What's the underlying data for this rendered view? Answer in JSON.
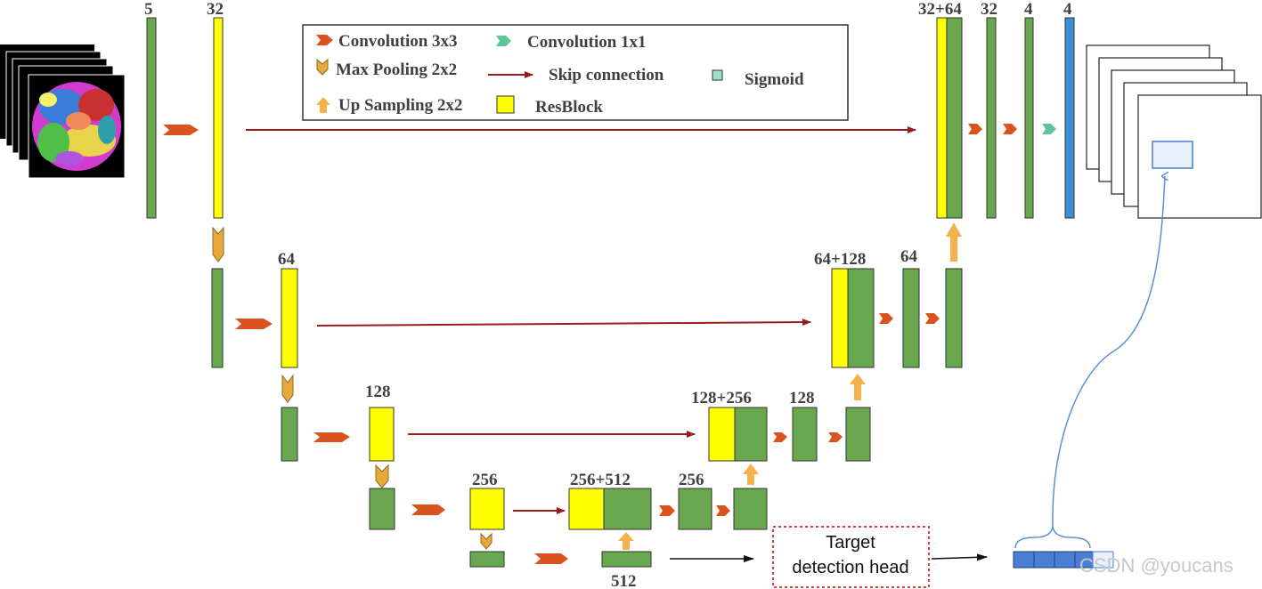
{
  "colors": {
    "conv_block": "#6aa84f",
    "resblock": "#ffff00",
    "sigmoid": "#3d8fd6",
    "skip_arrow": "#9b1c1c",
    "conv3x3_arrow": "#d9531e",
    "maxpool_arrow": "#e8a93b",
    "upsample_arrow": "#f5b24a",
    "conv1x1_arrow": "#5ec49a",
    "head_border": "#cc2b2b",
    "head_output": "#4a7fd6",
    "link_curve": "#5b8fd6"
  },
  "legend": {
    "conv3x3": "Convolution 3x3",
    "conv1x1": "Convolution 1x1",
    "maxpool": "Max Pooling 2x2",
    "skip": "Skip connection",
    "sigmoid": "Sigmoid",
    "upsample": "Up Sampling 2x2",
    "resblock": "ResBlock"
  },
  "channel_labels": {
    "in5": "5",
    "enc1": "32",
    "enc2": "64",
    "enc3": "128",
    "enc4": "256",
    "bottleneck": "512",
    "dec4_concat": "256+512",
    "dec4": "256",
    "dec3_concat": "128+256",
    "dec3": "128",
    "dec2_concat": "64+128",
    "dec2": "64",
    "dec1_concat": "32+64",
    "dec1": "32",
    "out_a": "4",
    "out_b": "4"
  },
  "detection_head": {
    "line1": "Target",
    "line2": "detection head"
  },
  "watermark": "CSDN @youcans",
  "icons": {
    "conv3x3": "right-chevron-arrow-icon",
    "conv1x1": "right-chevron-arrow-icon",
    "maxpool": "down-chevron-arrow-icon",
    "upsample": "up-arrow-icon",
    "skip": "right-line-arrow-icon"
  }
}
